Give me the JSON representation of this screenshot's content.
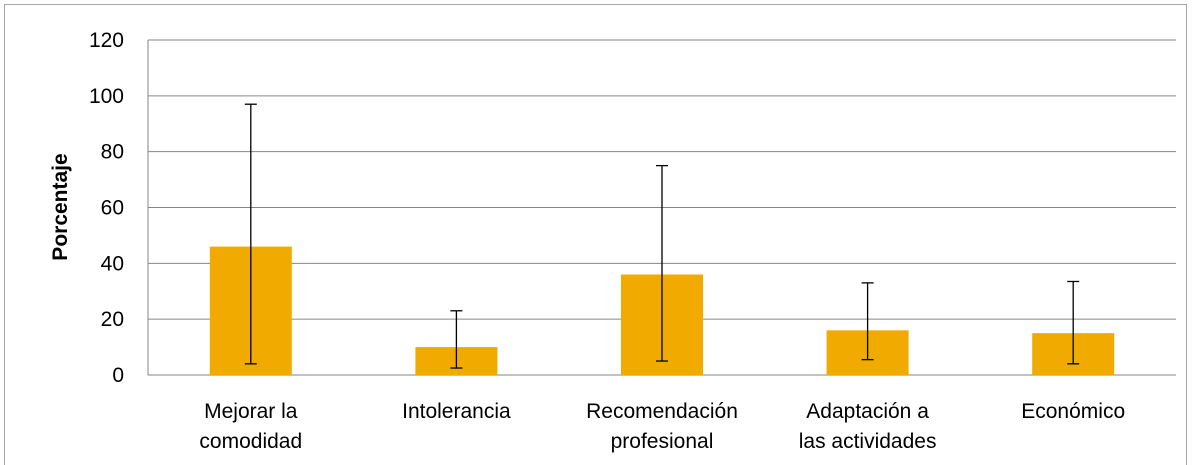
{
  "chart_data": {
    "type": "bar",
    "ylabel": "Porcentaje",
    "xlabel": "",
    "ylim": [
      0,
      120
    ],
    "yticks": [
      0,
      20,
      40,
      60,
      80,
      100,
      120
    ],
    "grid": true,
    "bar_color": "#F0AA00",
    "categories": [
      [
        "Mejorar la",
        "comodidad"
      ],
      [
        "Intolerancia"
      ],
      [
        "Recomendación",
        "profesional"
      ],
      [
        "Adaptación a",
        "las actividades"
      ],
      [
        "Económico"
      ]
    ],
    "values": [
      46,
      10,
      36,
      16,
      15
    ],
    "error_low": [
      4,
      2.5,
      5,
      5.5,
      4
    ],
    "error_high": [
      97,
      23,
      75,
      33,
      33.5
    ]
  }
}
